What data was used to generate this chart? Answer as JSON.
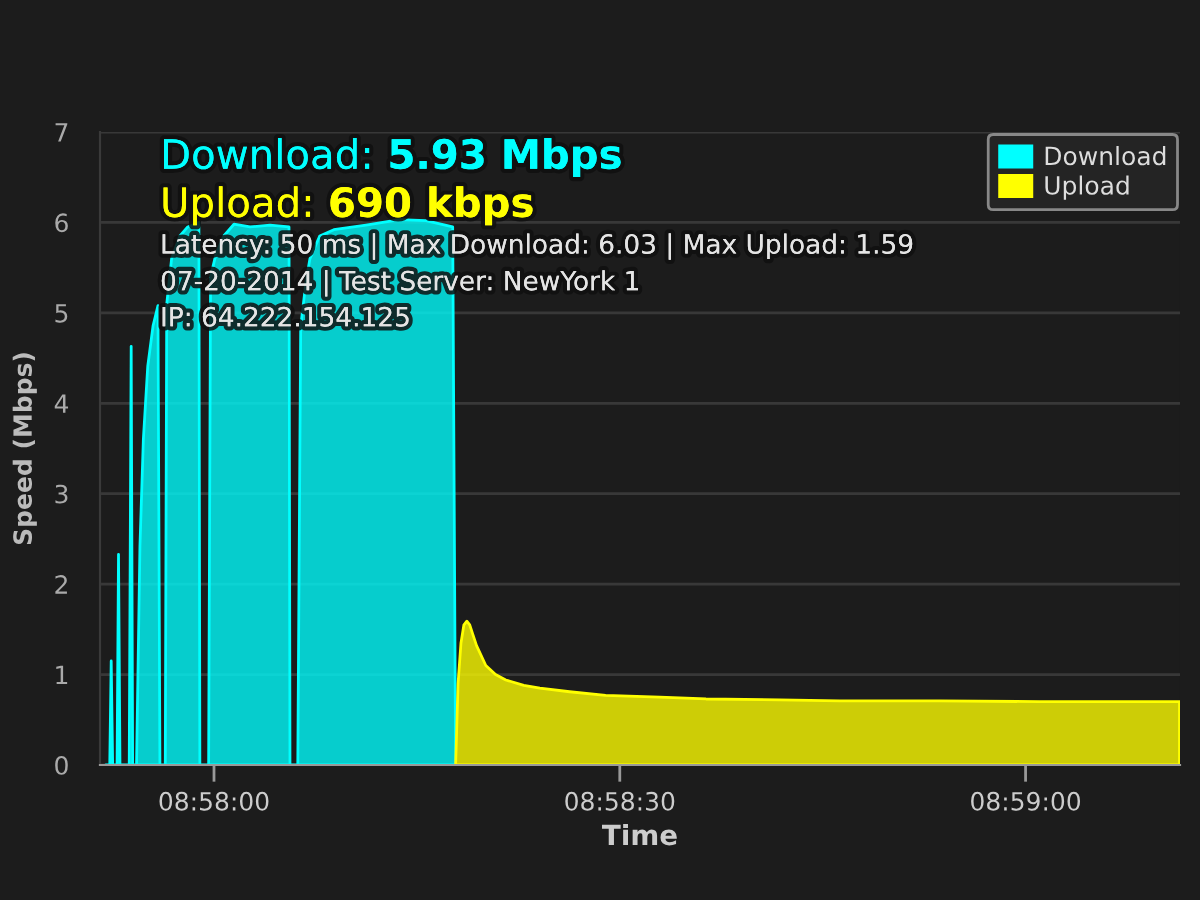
{
  "chart_data": {
    "type": "area",
    "xlabel": "Time",
    "ylabel": "Speed (Mbps)",
    "annotations": [
      "Download:",
      "5.93 Mbps",
      "Upload:",
      "690 kbps",
      "Latency: 50 ms | Max Download: 6.03 | Max Upload: 1.59",
      "07-20-2014 | Test Server: NewYork 1",
      "IP: 64.222.154.125"
    ],
    "xlim": [
      8.96433,
      8.9865
    ],
    "xticks": [
      {
        "value": 8.96667,
        "label": "08:58:00"
      },
      {
        "value": 8.975,
        "label": "08:58:30"
      },
      {
        "value": 8.98333,
        "label": "08:59:00"
      }
    ],
    "ylim": [
      0,
      7
    ],
    "yticks": [
      0,
      1,
      2,
      3,
      4,
      5,
      6,
      7
    ],
    "grid": "y",
    "legend": "top right",
    "series": [
      {
        "name": "Download",
        "color": "#00ffff",
        "x": [
          8.96445,
          8.96453,
          8.96456,
          8.96459,
          8.96468,
          8.96471,
          8.96474,
          8.96493,
          8.96497,
          8.965,
          8.96508,
          8.96515,
          8.96522,
          8.96531,
          8.96542,
          8.96552,
          8.96556,
          8.96567,
          8.9657,
          8.9658,
          8.96597,
          8.96613,
          8.96636,
          8.96638,
          8.96656,
          8.9666,
          8.96671,
          8.96687,
          8.96708,
          8.96741,
          8.96782,
          8.96821,
          8.96823,
          8.96839,
          8.96845,
          8.96856,
          8.96864,
          8.96884,
          8.96913,
          8.96979,
          8.97048,
          8.97102,
          8.97157,
          8.97163
        ],
        "values": [
          0,
          0,
          1.15,
          0,
          0,
          2.33,
          0,
          0,
          4.63,
          0,
          0,
          2.42,
          3.6,
          4.41,
          4.86,
          5.08,
          0,
          0,
          5.1,
          5.6,
          5.85,
          5.95,
          6.0,
          0,
          0,
          5.4,
          5.65,
          5.85,
          5.98,
          5.95,
          5.97,
          5.95,
          0,
          0,
          4.85,
          5.35,
          5.6,
          5.85,
          5.92,
          5.97,
          6.03,
          6.02,
          5.95,
          0
        ]
      },
      {
        "name": "Upload",
        "color": "#ffff00",
        "x": [
          8.97163,
          8.97168,
          8.97174,
          8.9718,
          8.97186,
          8.97192,
          8.97198,
          8.97206,
          8.97225,
          8.97245,
          8.97266,
          8.97303,
          8.97336,
          8.97397,
          8.97471,
          8.97582,
          8.97677,
          8.97828,
          8.97952,
          8.98157,
          8.98362,
          8.98526,
          8.98649
        ],
        "values": [
          0,
          0.9,
          1.35,
          1.55,
          1.59,
          1.55,
          1.45,
          1.32,
          1.1,
          1.0,
          0.94,
          0.88,
          0.85,
          0.81,
          0.77,
          0.75,
          0.73,
          0.72,
          0.71,
          0.71,
          0.7,
          0.7,
          0.7
        ]
      }
    ]
  }
}
